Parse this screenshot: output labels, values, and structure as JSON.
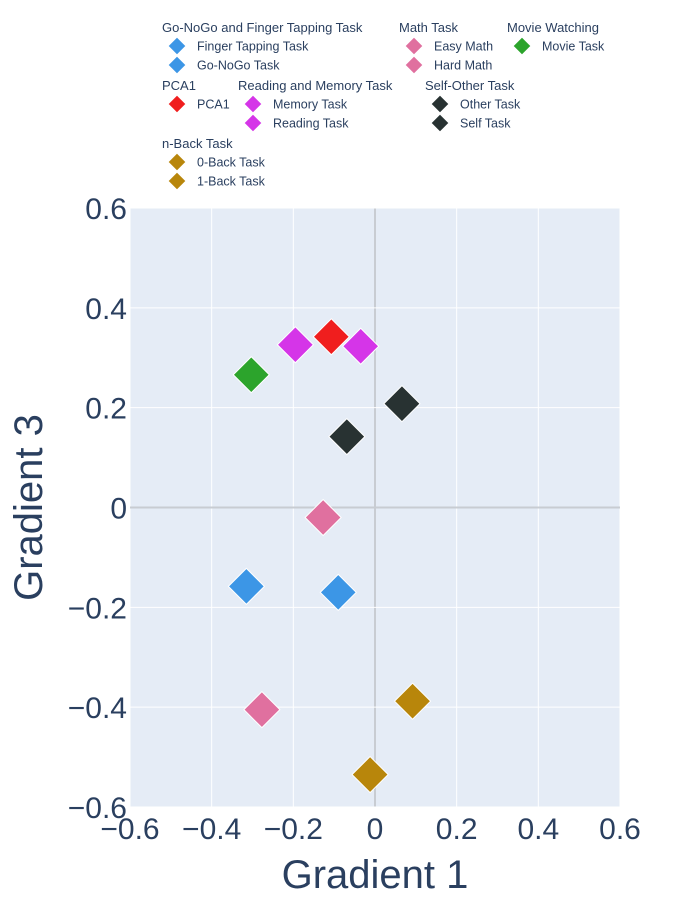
{
  "chart_data": {
    "type": "scatter",
    "xlabel": "Gradient 1",
    "ylabel": "Gradient 3",
    "xlim": [
      -0.6,
      0.6
    ],
    "ylim": [
      -0.6,
      0.6
    ],
    "xticks": [
      -0.6,
      -0.4,
      -0.2,
      0,
      0.2,
      0.4,
      0.6
    ],
    "yticks": [
      -0.6,
      -0.4,
      -0.2,
      0,
      0.2,
      0.4,
      0.6
    ],
    "xtick_labels": [
      "−0.6",
      "−0.4",
      "−0.2",
      "0",
      "0.2",
      "0.4",
      "0.6"
    ],
    "ytick_labels": [
      "−0.6",
      "−0.4",
      "−0.2",
      "0",
      "0.2",
      "0.4",
      "0.6"
    ],
    "grid": true,
    "legend_position": "top",
    "plot_bg": "#e5ecf6",
    "groups": [
      {
        "title": "Go-NoGo and Finger Tapping Task",
        "series": [
          {
            "name": "Finger Tapping Task",
            "color": "#3c96e6",
            "x": [
              -0.315
            ],
            "y": [
              -0.158
            ]
          },
          {
            "name": "Go-NoGo Task",
            "color": "#3c96e6",
            "x": [
              -0.09
            ],
            "y": [
              -0.17
            ]
          }
        ]
      },
      {
        "title": "Math Task",
        "series": [
          {
            "name": "Easy Math",
            "color": "#e0709f",
            "x": [
              -0.127
            ],
            "y": [
              -0.02
            ]
          },
          {
            "name": "Hard Math",
            "color": "#e0709f",
            "x": [
              -0.277
            ],
            "y": [
              -0.405
            ]
          }
        ]
      },
      {
        "title": "Movie Watching",
        "series": [
          {
            "name": "Movie Task",
            "color": "#2ca42c",
            "x": [
              -0.303
            ],
            "y": [
              0.266
            ]
          }
        ]
      },
      {
        "title": "PCA1",
        "series": [
          {
            "name": "PCA1",
            "color": "#f01e1e",
            "x": [
              -0.107
            ],
            "y": [
              0.342
            ]
          }
        ]
      },
      {
        "title": "Reading and Memory Task",
        "series": [
          {
            "name": "Memory Task",
            "color": "#d535e8",
            "x": [
              -0.195
            ],
            "y": [
              0.326
            ]
          },
          {
            "name": "Reading Task",
            "color": "#d535e8",
            "x": [
              -0.035
            ],
            "y": [
              0.323
            ]
          }
        ]
      },
      {
        "title": "Self-Other Task",
        "series": [
          {
            "name": "Other Task",
            "color": "#283232",
            "x": [
              0.066
            ],
            "y": [
              0.208
            ]
          },
          {
            "name": "Self Task",
            "color": "#283232",
            "x": [
              -0.069
            ],
            "y": [
              0.142
            ]
          }
        ]
      },
      {
        "title": "n-Back Task",
        "series": [
          {
            "name": "0-Back Task",
            "color": "#b8860b",
            "x": [
              -0.012
            ],
            "y": [
              -0.535
            ]
          },
          {
            "name": "1-Back Task",
            "color": "#b8860b",
            "x": [
              0.092
            ],
            "y": [
              -0.388
            ]
          }
        ]
      }
    ]
  }
}
